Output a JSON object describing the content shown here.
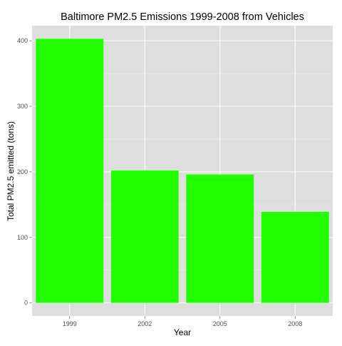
{
  "chart_data": {
    "type": "bar",
    "title": "Baltimore PM2.5 Emissions 1999-2008 from Vehicles",
    "xlabel": "Year",
    "ylabel": "Total PM2.5 emitted (tons)",
    "categories": [
      "1999",
      "2002",
      "2005",
      "2008"
    ],
    "values": [
      403,
      202,
      196,
      139
    ],
    "yticks": [
      0,
      100,
      200,
      300,
      400
    ],
    "ylim": [
      -20,
      423
    ],
    "grid": true,
    "legend": "none"
  },
  "colors": {
    "bar": "#22ff00",
    "panel_background": "#dedede",
    "gridline": "#ffffff",
    "tick_text": "#4d4d4d",
    "text": "#000000"
  }
}
